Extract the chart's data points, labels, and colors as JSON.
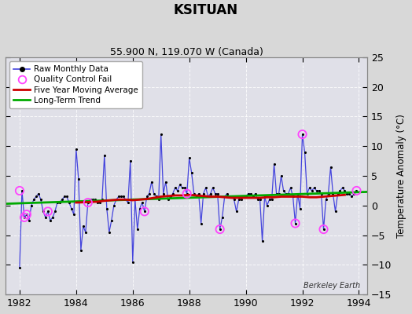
{
  "title": "KSITUAN",
  "subtitle": "55.900 N, 119.070 W (Canada)",
  "ylabel": "Temperature Anomaly (°C)",
  "watermark": "Berkeley Earth",
  "xlim": [
    1981.5,
    1994.3
  ],
  "ylim": [
    -15,
    25
  ],
  "yticks": [
    -15,
    -10,
    -5,
    0,
    5,
    10,
    15,
    20,
    25
  ],
  "xticks": [
    1982,
    1984,
    1986,
    1988,
    1990,
    1992,
    1994
  ],
  "bg_color": "#d8d8d8",
  "plot_bg_color": "#e0e0e8",
  "raw_color": "#4444dd",
  "raw_dot_color": "#000000",
  "moving_avg_color": "#cc0000",
  "trend_color": "#00aa00",
  "qc_fail_color": "#ff44ff",
  "raw_data": [
    [
      1982.0,
      -10.5
    ],
    [
      1982.083,
      2.5
    ],
    [
      1982.167,
      -2.0
    ],
    [
      1982.25,
      -1.5
    ],
    [
      1982.333,
      -2.5
    ],
    [
      1982.417,
      0.0
    ],
    [
      1982.5,
      1.0
    ],
    [
      1982.583,
      1.5
    ],
    [
      1982.667,
      2.0
    ],
    [
      1982.75,
      1.0
    ],
    [
      1982.833,
      -1.0
    ],
    [
      1982.917,
      -2.0
    ],
    [
      1983.0,
      -1.0
    ],
    [
      1983.083,
      -2.5
    ],
    [
      1983.167,
      -2.0
    ],
    [
      1983.25,
      -1.0
    ],
    [
      1983.333,
      0.5
    ],
    [
      1983.417,
      0.5
    ],
    [
      1983.5,
      1.0
    ],
    [
      1983.583,
      1.5
    ],
    [
      1983.667,
      1.5
    ],
    [
      1983.75,
      0.5
    ],
    [
      1983.833,
      -0.5
    ],
    [
      1983.917,
      -1.5
    ],
    [
      1984.0,
      9.5
    ],
    [
      1984.083,
      4.5
    ],
    [
      1984.167,
      -7.5
    ],
    [
      1984.25,
      -3.5
    ],
    [
      1984.333,
      -4.5
    ],
    [
      1984.417,
      0.5
    ],
    [
      1984.5,
      1.0
    ],
    [
      1984.583,
      1.0
    ],
    [
      1984.667,
      1.0
    ],
    [
      1984.75,
      0.5
    ],
    [
      1984.833,
      0.5
    ],
    [
      1984.917,
      1.0
    ],
    [
      1985.0,
      8.5
    ],
    [
      1985.083,
      -0.5
    ],
    [
      1985.167,
      -4.5
    ],
    [
      1985.25,
      -2.5
    ],
    [
      1985.333,
      0.0
    ],
    [
      1985.417,
      1.0
    ],
    [
      1985.5,
      1.5
    ],
    [
      1985.583,
      1.5
    ],
    [
      1985.667,
      1.5
    ],
    [
      1985.75,
      1.0
    ],
    [
      1985.833,
      0.5
    ],
    [
      1985.917,
      7.5
    ],
    [
      1986.0,
      -9.5
    ],
    [
      1986.083,
      1.0
    ],
    [
      1986.167,
      -4.0
    ],
    [
      1986.25,
      -0.5
    ],
    [
      1986.333,
      0.5
    ],
    [
      1986.417,
      -1.0
    ],
    [
      1986.5,
      1.5
    ],
    [
      1986.583,
      2.0
    ],
    [
      1986.667,
      4.0
    ],
    [
      1986.75,
      2.0
    ],
    [
      1986.833,
      1.5
    ],
    [
      1986.917,
      1.0
    ],
    [
      1987.0,
      12.0
    ],
    [
      1987.083,
      2.0
    ],
    [
      1987.167,
      4.0
    ],
    [
      1987.25,
      1.0
    ],
    [
      1987.333,
      1.5
    ],
    [
      1987.417,
      2.0
    ],
    [
      1987.5,
      3.0
    ],
    [
      1987.583,
      2.5
    ],
    [
      1987.667,
      3.5
    ],
    [
      1987.75,
      3.0
    ],
    [
      1987.833,
      3.0
    ],
    [
      1987.917,
      2.0
    ],
    [
      1988.0,
      8.0
    ],
    [
      1988.083,
      5.5
    ],
    [
      1988.167,
      2.0
    ],
    [
      1988.25,
      1.5
    ],
    [
      1988.333,
      2.0
    ],
    [
      1988.417,
      -3.0
    ],
    [
      1988.5,
      2.0
    ],
    [
      1988.583,
      3.0
    ],
    [
      1988.667,
      1.5
    ],
    [
      1988.75,
      2.0
    ],
    [
      1988.833,
      3.0
    ],
    [
      1988.917,
      2.0
    ],
    [
      1989.0,
      2.0
    ],
    [
      1989.083,
      -4.0
    ],
    [
      1989.167,
      -2.0
    ],
    [
      1989.25,
      1.5
    ],
    [
      1989.333,
      2.0
    ],
    [
      1989.417,
      1.5
    ],
    [
      1989.5,
      1.5
    ],
    [
      1989.583,
      1.0
    ],
    [
      1989.667,
      -1.0
    ],
    [
      1989.75,
      1.0
    ],
    [
      1989.833,
      1.0
    ],
    [
      1989.917,
      1.5
    ],
    [
      1990.0,
      1.5
    ],
    [
      1990.083,
      2.0
    ],
    [
      1990.167,
      2.0
    ],
    [
      1990.25,
      1.5
    ],
    [
      1990.333,
      2.0
    ],
    [
      1990.417,
      1.0
    ],
    [
      1990.5,
      1.0
    ],
    [
      1990.583,
      -6.0
    ],
    [
      1990.667,
      1.5
    ],
    [
      1990.75,
      0.0
    ],
    [
      1990.833,
      1.0
    ],
    [
      1990.917,
      1.0
    ],
    [
      1991.0,
      7.0
    ],
    [
      1991.083,
      2.0
    ],
    [
      1991.167,
      2.0
    ],
    [
      1991.25,
      5.0
    ],
    [
      1991.333,
      2.5
    ],
    [
      1991.417,
      2.0
    ],
    [
      1991.5,
      2.0
    ],
    [
      1991.583,
      3.0
    ],
    [
      1991.667,
      1.5
    ],
    [
      1991.75,
      -3.0
    ],
    [
      1991.833,
      2.0
    ],
    [
      1991.917,
      -0.5
    ],
    [
      1992.0,
      12.0
    ],
    [
      1992.083,
      9.0
    ],
    [
      1992.167,
      2.0
    ],
    [
      1992.25,
      3.0
    ],
    [
      1992.333,
      2.5
    ],
    [
      1992.417,
      3.0
    ],
    [
      1992.5,
      2.5
    ],
    [
      1992.583,
      2.5
    ],
    [
      1992.667,
      2.0
    ],
    [
      1992.75,
      -4.0
    ],
    [
      1992.833,
      1.0
    ],
    [
      1992.917,
      2.0
    ],
    [
      1993.0,
      6.5
    ],
    [
      1993.083,
      2.0
    ],
    [
      1993.167,
      -1.0
    ],
    [
      1993.25,
      2.0
    ],
    [
      1993.333,
      2.5
    ],
    [
      1993.417,
      3.0
    ],
    [
      1993.5,
      2.5
    ],
    [
      1993.583,
      2.0
    ],
    [
      1993.667,
      2.0
    ],
    [
      1993.75,
      1.5
    ],
    [
      1993.833,
      2.0
    ],
    [
      1993.917,
      2.5
    ]
  ],
  "qc_fail_points": [
    [
      1982.0,
      2.5
    ],
    [
      1982.167,
      -2.0
    ],
    [
      1982.25,
      -1.5
    ],
    [
      1983.0,
      -1.0
    ],
    [
      1984.417,
      0.5
    ],
    [
      1986.417,
      -1.0
    ],
    [
      1987.917,
      2.0
    ],
    [
      1989.083,
      -4.0
    ],
    [
      1991.75,
      -3.0
    ],
    [
      1992.0,
      12.0
    ],
    [
      1992.75,
      -4.0
    ],
    [
      1993.917,
      2.5
    ]
  ],
  "moving_avg": [
    [
      1984.0,
      0.5
    ],
    [
      1984.25,
      0.55
    ],
    [
      1984.5,
      0.6
    ],
    [
      1984.75,
      0.65
    ],
    [
      1985.0,
      0.8
    ],
    [
      1985.25,
      0.9
    ],
    [
      1985.5,
      1.0
    ],
    [
      1985.75,
      1.0
    ],
    [
      1986.0,
      0.9
    ],
    [
      1986.25,
      1.0
    ],
    [
      1986.5,
      1.1
    ],
    [
      1986.75,
      1.3
    ],
    [
      1987.0,
      1.5
    ],
    [
      1987.25,
      1.6
    ],
    [
      1987.5,
      1.7
    ],
    [
      1987.75,
      1.7
    ],
    [
      1988.0,
      1.8
    ],
    [
      1988.25,
      1.7
    ],
    [
      1988.5,
      1.6
    ],
    [
      1988.75,
      1.5
    ],
    [
      1989.0,
      1.5
    ],
    [
      1989.25,
      1.4
    ],
    [
      1989.5,
      1.3
    ],
    [
      1989.75,
      1.3
    ],
    [
      1990.0,
      1.3
    ],
    [
      1990.25,
      1.3
    ],
    [
      1990.5,
      1.3
    ],
    [
      1990.75,
      1.4
    ],
    [
      1991.0,
      1.4
    ],
    [
      1991.25,
      1.5
    ],
    [
      1991.5,
      1.5
    ],
    [
      1991.75,
      1.5
    ],
    [
      1992.0,
      1.5
    ],
    [
      1992.25,
      1.4
    ],
    [
      1992.5,
      1.4
    ],
    [
      1992.75,
      1.5
    ],
    [
      1993.0,
      1.6
    ],
    [
      1993.25,
      1.7
    ],
    [
      1993.5,
      1.8
    ]
  ],
  "trend_line": [
    [
      1981.5,
      0.3
    ],
    [
      1994.3,
      2.3
    ]
  ],
  "figsize": [
    5.24,
    4.0
  ],
  "dpi": 100
}
